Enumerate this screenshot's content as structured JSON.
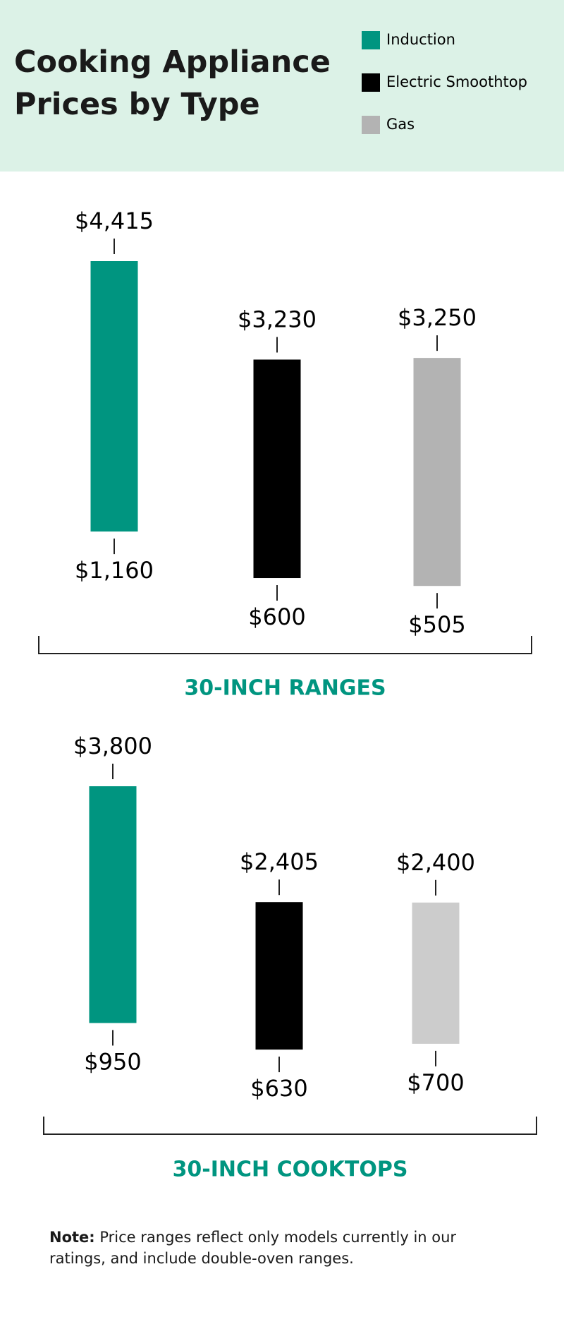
{
  "title": "Cooking Appliance Prices by Type",
  "note": {
    "label": "Note:",
    "text": "Price ranges reflect only models currently in our ratings, and include double-oven ranges."
  },
  "chart_data": [
    {
      "type": "range",
      "title": "30-INCH RANGES",
      "series": [
        {
          "name": "Induction",
          "color": "#009580",
          "values": [
            1160,
            4415
          ],
          "value_labels": [
            "$1,160",
            "$4,415"
          ]
        },
        {
          "name": "Electric Smoothtop",
          "color": "#000000",
          "values": [
            600,
            3230
          ],
          "value_labels": [
            "$600",
            "$3,230"
          ]
        },
        {
          "name": "Gas",
          "color": "#b3b3b3",
          "values": [
            505,
            3250
          ],
          "value_labels": [
            "$505",
            "$3,250"
          ]
        }
      ]
    },
    {
      "type": "range",
      "title": "30-INCH COOKTOPS",
      "series": [
        {
          "name": "Induction",
          "color": "#009580",
          "values": [
            950,
            3800
          ],
          "value_labels": [
            "$950",
            "$3,800"
          ]
        },
        {
          "name": "Electric Smoothtop",
          "color": "#000000",
          "values": [
            630,
            2405
          ],
          "value_labels": [
            "$630",
            "$2,405"
          ]
        },
        {
          "name": "Gas",
          "color": "#cccccc",
          "values": [
            700,
            2400
          ],
          "value_labels": [
            "$700",
            "$2,400"
          ]
        }
      ]
    }
  ]
}
